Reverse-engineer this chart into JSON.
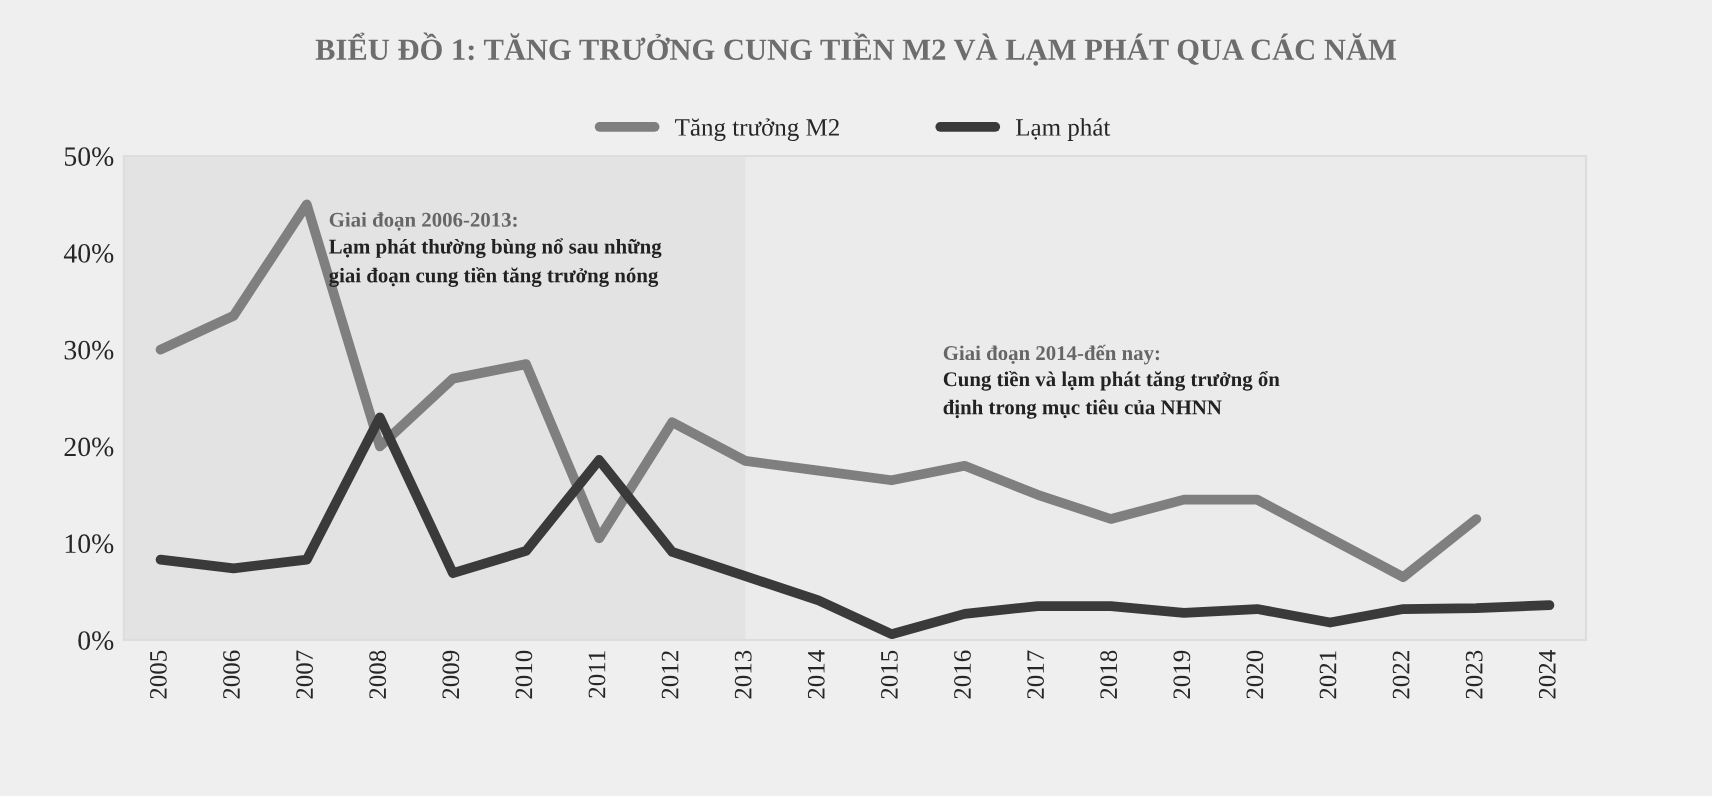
{
  "chart_data": {
    "type": "line",
    "title": "BIỂU ĐỒ 1: TĂNG TRƯỞNG CUNG TIỀN M2 VÀ LẠM PHÁT QUA CÁC NĂM",
    "x": [
      2005,
      2006,
      2007,
      2008,
      2009,
      2010,
      2011,
      2012,
      2013,
      2014,
      2015,
      2016,
      2017,
      2018,
      2019,
      2020,
      2021,
      2022,
      2023,
      2024
    ],
    "series": [
      {
        "name": "Tăng trưởng M2",
        "color": "#7f7f7f",
        "values": [
          30,
          33.5,
          45,
          20,
          27,
          28.5,
          10.5,
          22.5,
          18.5,
          17.5,
          16.5,
          18,
          15,
          12.5,
          14.5,
          14.5,
          10.5,
          6.5,
          12.5,
          null
        ]
      },
      {
        "name": "Lạm phát",
        "color": "#3a3a3a",
        "values": [
          8.3,
          7.4,
          8.3,
          23,
          6.9,
          9.2,
          18.6,
          9.1,
          6.6,
          4.1,
          0.6,
          2.7,
          3.5,
          3.5,
          2.8,
          3.2,
          1.8,
          3.2,
          3.3,
          3.6
        ]
      }
    ],
    "xlim": [
      2004.5,
      2024.5
    ],
    "xticks": [
      2005,
      2006,
      2007,
      2008,
      2009,
      2010,
      2011,
      2012,
      2013,
      2014,
      2015,
      2016,
      2017,
      2018,
      2019,
      2020,
      2021,
      2022,
      2023,
      2024
    ],
    "ylim": [
      0,
      50
    ],
    "yticks": [
      {
        "value": 0,
        "label": "0%"
      },
      {
        "value": 10,
        "label": "10%"
      },
      {
        "value": 20,
        "label": "20%"
      },
      {
        "value": 30,
        "label": "30%"
      },
      {
        "value": 40,
        "label": "40%"
      },
      {
        "value": 50,
        "label": "50%"
      }
    ],
    "bands": [
      {
        "axis": "x",
        "from": 2004.5,
        "to": 2013,
        "color": "#e3e3e3"
      }
    ],
    "annotations": [
      "Giai đoạn 2006-2013:",
      "Lạm phát thường bùng nổ sau những\ngiai đoạn cung tiền tăng trưởng nóng",
      "Giai đoạn 2014-đến nay:",
      "Cung tiền và lạm phát tăng trưởng ổn\nđịnh trong mục tiêu của NHNN"
    ],
    "legend": "top",
    "grid": false,
    "marker": "none",
    "line_style": "solid"
  }
}
